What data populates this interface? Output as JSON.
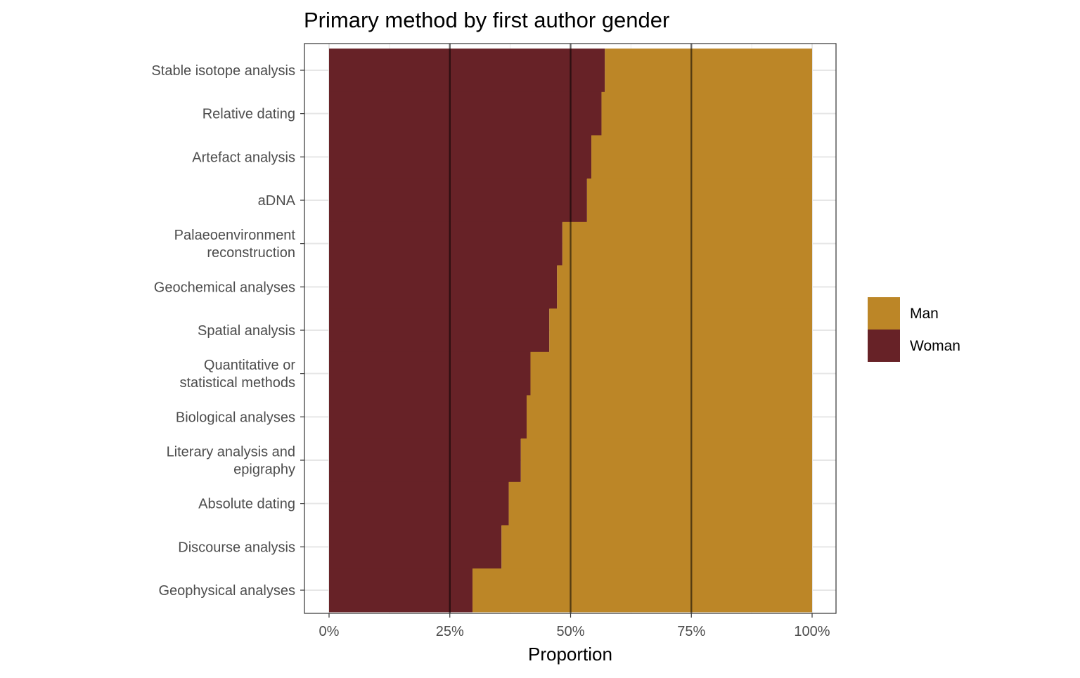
{
  "chart_data": {
    "type": "bar",
    "orientation": "horizontal",
    "stacked": "proportion",
    "title": "Primary method by first author gender",
    "xlabel": "Proportion",
    "ylabel": "",
    "xlim": [
      0,
      1
    ],
    "xticks": [
      0,
      0.25,
      0.5,
      0.75,
      1.0
    ],
    "xtick_labels": [
      "0%",
      "25%",
      "50%",
      "75%",
      "100%"
    ],
    "reference_lines": [
      0.25,
      0.5,
      0.75
    ],
    "grid": true,
    "legend_position": "right",
    "categories": [
      "Stable isotope analysis",
      "Relative dating",
      "Artefact analysis",
      "aDNA",
      "Palaeoenvironment\nreconstruction",
      "Geochemical analyses",
      "Spatial analysis",
      "Quantitative or\nstatistical methods",
      "Biological analyses",
      "Literary analysis and\nepigraphy",
      "Absolute dating",
      "Discourse analysis",
      "Geophysical analyses"
    ],
    "series": [
      {
        "name": "Woman",
        "color": "#672227",
        "values": [
          0.571,
          0.564,
          0.543,
          0.534,
          0.483,
          0.472,
          0.456,
          0.417,
          0.409,
          0.397,
          0.372,
          0.357,
          0.297
        ]
      },
      {
        "name": "Man",
        "color": "#bc8627",
        "values": [
          0.429,
          0.436,
          0.457,
          0.466,
          0.517,
          0.528,
          0.544,
          0.583,
          0.591,
          0.603,
          0.628,
          0.643,
          0.703
        ]
      }
    ],
    "legend": [
      {
        "name": "Man",
        "color": "#bc8627"
      },
      {
        "name": "Woman",
        "color": "#672227"
      }
    ]
  }
}
